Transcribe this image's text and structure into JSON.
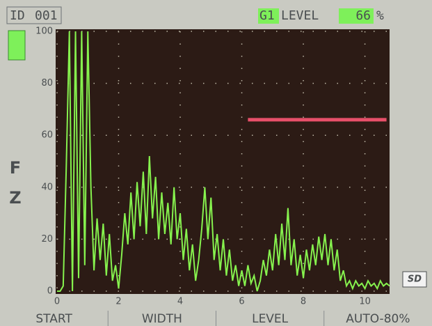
{
  "header": {
    "id_label": "ID",
    "id_value": "001",
    "gate_name": "G1",
    "level_label": "LEVEL",
    "level_value": 66,
    "level_unit": "%"
  },
  "side": {
    "upper_letter": "F",
    "lower_letter": "Z",
    "card": "SD"
  },
  "softkeys": [
    "START",
    "WIDTH",
    "LEVEL",
    "AUTO-80%"
  ],
  "chart_data": {
    "type": "line",
    "x": [
      0,
      0.1,
      0.2,
      0.3,
      0.4,
      0.5,
      0.6,
      0.7,
      0.8,
      0.9,
      1,
      1.1,
      1.2,
      1.3,
      1.4,
      1.5,
      1.6,
      1.7,
      1.8,
      1.9,
      2,
      2.1,
      2.2,
      2.3,
      2.4,
      2.5,
      2.6,
      2.7,
      2.8,
      2.9,
      3,
      3.1,
      3.2,
      3.3,
      3.4,
      3.5,
      3.6,
      3.7,
      3.8,
      3.9,
      4,
      4.1,
      4.2,
      4.3,
      4.4,
      4.5,
      4.6,
      4.7,
      4.8,
      4.9,
      5,
      5.1,
      5.2,
      5.3,
      5.4,
      5.5,
      5.6,
      5.7,
      5.8,
      5.9,
      6,
      6.1,
      6.2,
      6.3,
      6.4,
      6.5,
      6.6,
      6.7,
      6.8,
      6.9,
      7,
      7.1,
      7.2,
      7.3,
      7.4,
      7.5,
      7.6,
      7.7,
      7.8,
      7.9,
      8,
      8.1,
      8.2,
      8.3,
      8.4,
      8.5,
      8.6,
      8.7,
      8.8,
      8.9,
      9,
      9.1,
      9.2,
      9.3,
      9.4,
      9.5,
      9.6,
      9.7,
      9.8,
      9.9,
      10,
      10.1,
      10.2,
      10.3,
      10.4,
      10.5,
      10.6,
      10.7,
      10.8
    ],
    "values": [
      0,
      0,
      2,
      48,
      100,
      0,
      100,
      5,
      100,
      10,
      100,
      40,
      8,
      28,
      12,
      26,
      6,
      22,
      4,
      10,
      1,
      14,
      30,
      18,
      38,
      20,
      42,
      25,
      46,
      22,
      52,
      28,
      44,
      20,
      38,
      22,
      34,
      18,
      40,
      20,
      30,
      12,
      24,
      8,
      18,
      4,
      12,
      24,
      40,
      20,
      36,
      12,
      22,
      8,
      20,
      6,
      16,
      4,
      10,
      2,
      8,
      2,
      10,
      3,
      6,
      0,
      4,
      12,
      6,
      16,
      8,
      22,
      10,
      26,
      12,
      32,
      10,
      20,
      6,
      14,
      5,
      16,
      8,
      18,
      10,
      21,
      12,
      22,
      10,
      20,
      8,
      16,
      4,
      8,
      2,
      4,
      1,
      4,
      2,
      3,
      1,
      4,
      2,
      3,
      1,
      4,
      2,
      3,
      2
    ],
    "color": "#86f24e",
    "gate": {
      "start": 6.2,
      "end": 10.7,
      "color": "#e8506a"
    },
    "xlim": [
      0,
      10.8
    ],
    "xticks": [
      0,
      2,
      4,
      6,
      8,
      10
    ],
    "ylim": [
      0,
      100
    ],
    "yticks": [
      0,
      20,
      40,
      60,
      80,
      100
    ],
    "grid": true
  }
}
